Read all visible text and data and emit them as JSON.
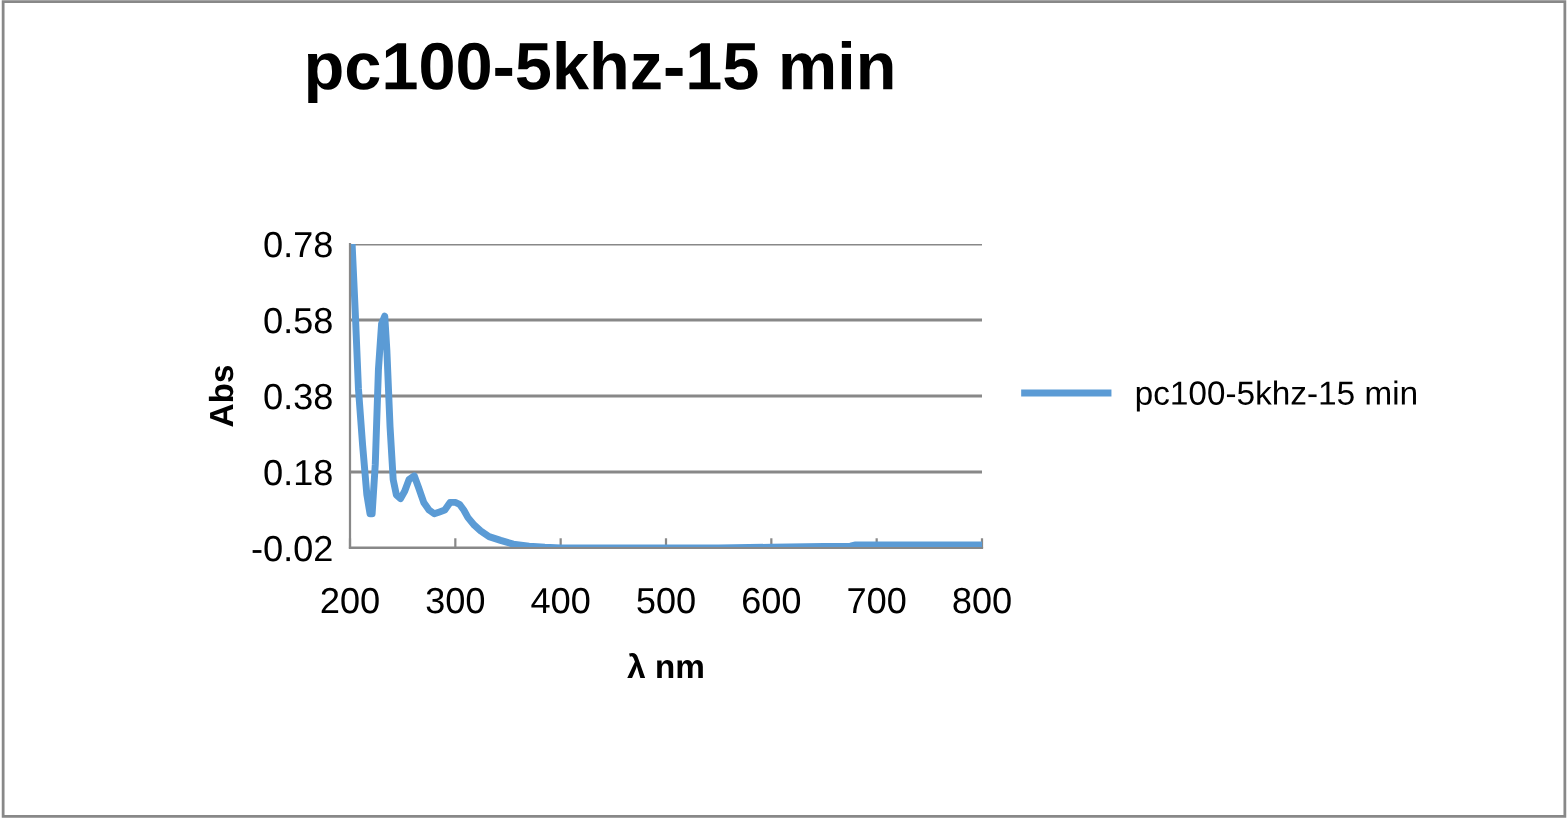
{
  "chart_data": {
    "type": "line",
    "title": "pc100-5khz-15 min",
    "xlabel": "λ nm",
    "ylabel": "Abs",
    "xlim": [
      200,
      800
    ],
    "xticks": [
      200,
      300,
      400,
      500,
      600,
      700,
      800
    ],
    "ylim": [
      -0.02,
      0.78
    ],
    "yticks": [
      -0.02,
      0.18,
      0.38,
      0.58,
      0.78
    ],
    "grid": "y",
    "legend": "right",
    "marker": "none",
    "line_style": "solid",
    "series": [
      {
        "name": "pc100-5khz-15 min",
        "color": "#5b9bd5",
        "x": [
          202,
          205,
          208,
          212,
          216,
          219,
          221,
          224,
          227,
          230,
          233,
          235,
          238,
          241,
          244,
          248,
          252,
          256,
          261,
          265,
          270,
          275,
          280,
          285,
          290,
          295,
          300,
          304,
          308,
          312,
          318,
          324,
          332,
          343,
          355,
          370,
          385,
          400,
          450,
          500,
          550,
          600,
          650,
          675,
          680,
          700,
          750,
          800
        ],
        "values": [
          0.78,
          0.6,
          0.4,
          0.25,
          0.12,
          0.07,
          0.07,
          0.2,
          0.45,
          0.57,
          0.59,
          0.5,
          0.3,
          0.16,
          0.12,
          0.11,
          0.13,
          0.16,
          0.17,
          0.14,
          0.1,
          0.08,
          0.07,
          0.075,
          0.08,
          0.1,
          0.1,
          0.095,
          0.08,
          0.06,
          0.04,
          0.025,
          0.01,
          0.0,
          -0.01,
          -0.015,
          -0.018,
          -0.02,
          -0.02,
          -0.02,
          -0.02,
          -0.018,
          -0.016,
          -0.015,
          -0.012,
          -0.012,
          -0.012,
          -0.012
        ]
      }
    ]
  }
}
